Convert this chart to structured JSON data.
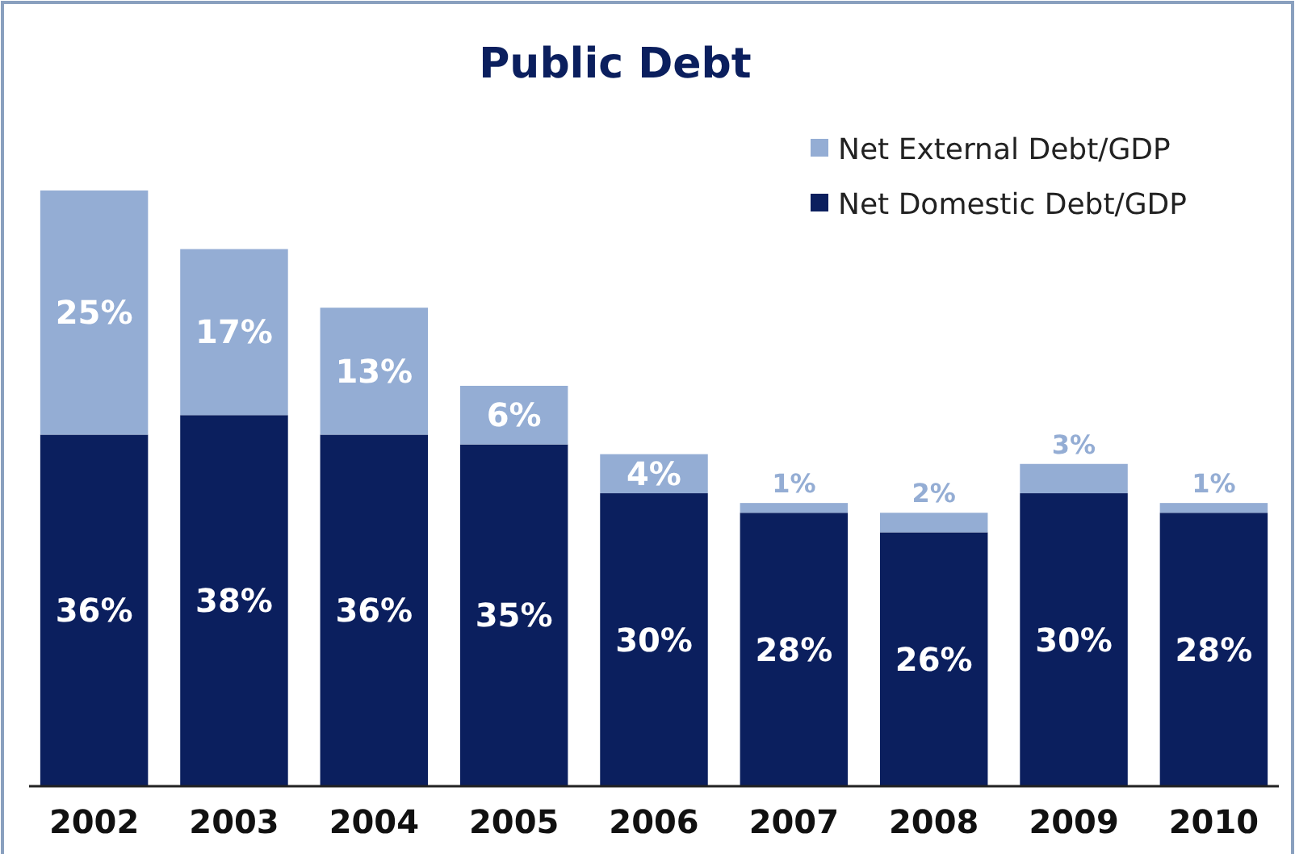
{
  "chart_data": {
    "type": "bar",
    "title": "Public Debt",
    "stacked": true,
    "legend": "top right",
    "categories": [
      "2002",
      "2003",
      "2004",
      "2005",
      "2006",
      "2007",
      "2008",
      "2009",
      "2010"
    ],
    "series": [
      {
        "name": "Net Domestic Debt/GDP",
        "color": "#0b1f5e",
        "values": [
          36,
          38,
          36,
          35,
          30,
          28,
          26,
          30,
          28
        ],
        "value_labels": [
          "36%",
          "38%",
          "36%",
          "35%",
          "30%",
          "28%",
          "26%",
          "30%",
          "28%"
        ]
      },
      {
        "name": "Net External Debt/GDP",
        "color": "#94add4",
        "values": [
          25,
          17,
          13,
          6,
          4,
          1,
          2,
          3,
          1
        ],
        "value_labels": [
          "25%",
          "17%",
          "13%",
          "6%",
          "4%",
          "1%",
          "2%",
          "3%",
          "1%"
        ]
      }
    ]
  }
}
